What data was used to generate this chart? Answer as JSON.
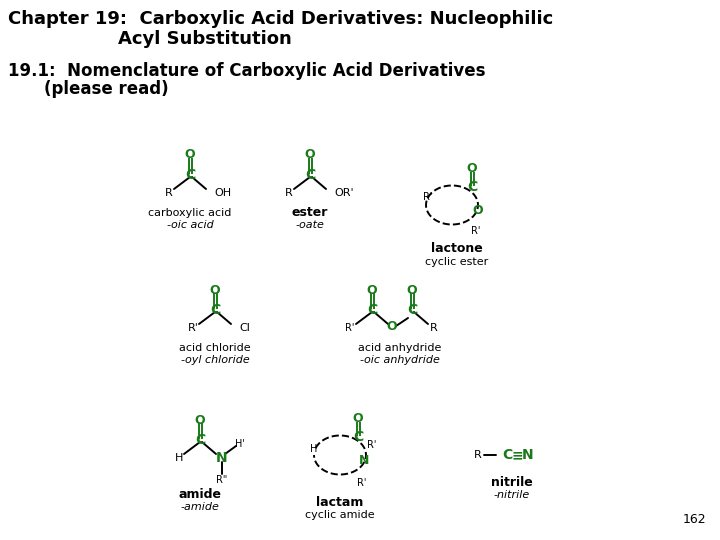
{
  "title_line1": "Chapter 19:  Carboxylic Acid Derivatives: Nucleophilic",
  "title_line2": "Acyl Substitution",
  "subtitle_line1": "19.1:  Nomenclature of Carboxylic Acid Derivatives",
  "subtitle_line2": "(please read)",
  "page_number": "162",
  "background_color": "#ffffff",
  "green_color": "#1a7a1a",
  "black_color": "#000000"
}
